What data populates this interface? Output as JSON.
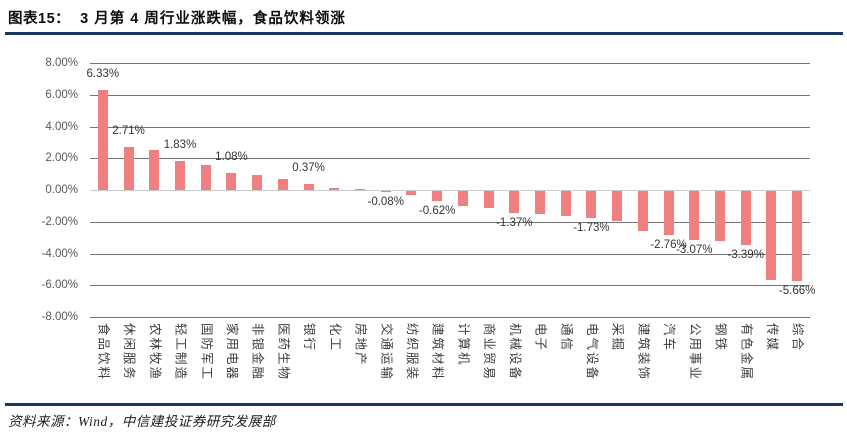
{
  "header": {
    "figure_label": "图表15：",
    "title": "3 月第 4 周行业涨跌幅，食品饮料领涨"
  },
  "chart_data": {
    "type": "bar",
    "title": "3 月第 4 周行业涨跌幅，食品饮料领涨",
    "xlabel": "",
    "ylabel": "",
    "ylim": [
      -8,
      8
    ],
    "ytick_step": 2,
    "yticks": [
      "8.00%",
      "6.00%",
      "4.00%",
      "2.00%",
      "0.00%",
      "-2.00%",
      "-4.00%",
      "-6.00%",
      "-8.00%"
    ],
    "grid": "horizontal",
    "legend": "none",
    "bar_color": "#F08080",
    "gridline_color": "#737373",
    "zero_line_color": "#c9c9c9",
    "categories": [
      "食品饮料",
      "休闲服务",
      "农林牧渔",
      "轻工制造",
      "国防军工",
      "家用电器",
      "非银金融",
      "医药生物",
      "银行",
      "化工",
      "房地产",
      "交通运输",
      "纺织服装",
      "建筑材料",
      "计算机",
      "商业贸易",
      "机械设备",
      "电子",
      "通信",
      "电气设备",
      "采掘",
      "建筑装饰",
      "汽车",
      "公用事业",
      "钢铁",
      "有色金属",
      "传媒",
      "综合"
    ],
    "values": [
      6.33,
      2.71,
      2.52,
      1.83,
      1.6,
      1.08,
      0.93,
      0.68,
      0.37,
      0.12,
      0.08,
      -0.08,
      -0.25,
      -0.62,
      -0.95,
      -1.1,
      -1.37,
      -1.43,
      -1.58,
      -1.73,
      -1.86,
      -2.5,
      -2.76,
      -3.07,
      -3.18,
      -3.39,
      -5.6,
      -5.66
    ],
    "data_labels": [
      "6.33%",
      "2.71%",
      null,
      "1.83%",
      null,
      "1.08%",
      null,
      null,
      "0.37%",
      null,
      null,
      "-0.08%",
      null,
      "-0.62%",
      null,
      null,
      "-1.37%",
      null,
      null,
      "-1.73%",
      null,
      null,
      "-2.76%",
      "-3.07%",
      null,
      "-3.39%",
      null,
      "-5.66%"
    ]
  },
  "footer": {
    "source": "资料来源：Wind，中信建投证券研究发展部"
  }
}
